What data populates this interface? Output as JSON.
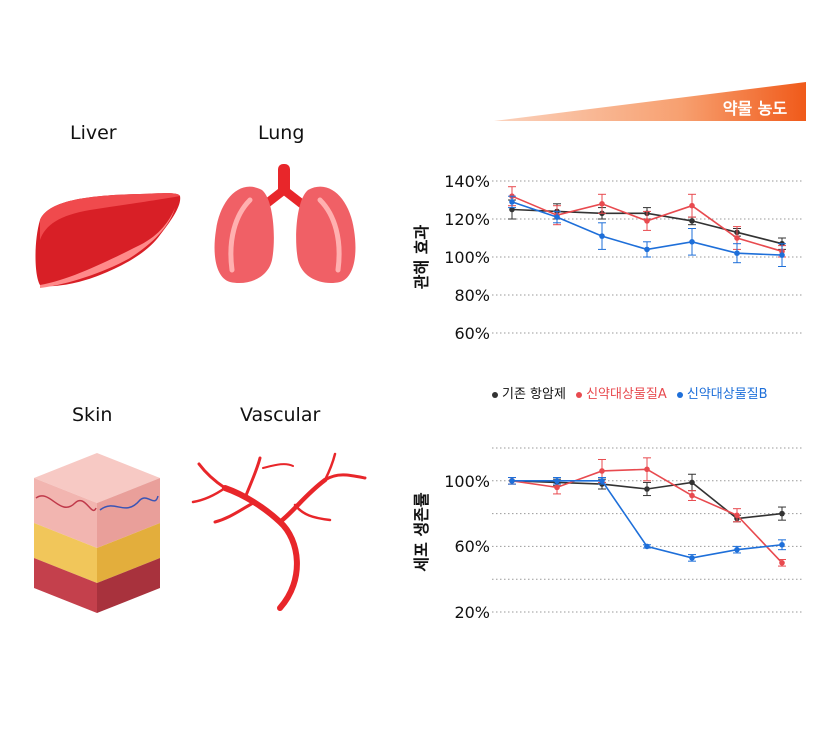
{
  "organs": {
    "liver": "Liver",
    "lung": "Lung",
    "skin": "Skin",
    "vascular": "Vascular"
  },
  "dose_label": "약물 농도",
  "colors": {
    "existing": "#333333",
    "candA": "#e84a4f",
    "candB": "#1e6fd9",
    "dose": "#f05a1a",
    "organ_red": "#e8262a"
  },
  "chart_data": [
    {
      "type": "line",
      "ylabel": "관해 효과",
      "ylim": [
        60,
        140
      ],
      "yticks": [
        "140%",
        "120%",
        "100%",
        "80%",
        "60%"
      ],
      "x": [
        1,
        2,
        3,
        4,
        5,
        6,
        7
      ],
      "grid": true,
      "series": [
        {
          "name": "기존 항암제",
          "color": "#333333",
          "values": [
            125,
            124,
            123,
            123,
            119,
            113,
            107
          ],
          "errors": [
            5,
            4,
            3,
            3,
            2,
            2,
            3
          ]
        },
        {
          "name": "신약대상물질A",
          "color": "#e84a4f",
          "values": [
            132,
            122,
            128,
            119,
            127,
            110,
            103
          ],
          "errors": [
            5,
            5,
            5,
            5,
            6,
            6,
            3
          ]
        },
        {
          "name": "신약대상물질B",
          "color": "#1e6fd9",
          "values": [
            129,
            121,
            111,
            104,
            108,
            102,
            101
          ],
          "errors": [
            3,
            3,
            7,
            4,
            7,
            5,
            6
          ]
        }
      ]
    },
    {
      "type": "line",
      "ylabel": "세포 생존률",
      "ylim": [
        20,
        100
      ],
      "yticks": [
        "100%",
        "60%",
        "20%"
      ],
      "x": [
        1,
        2,
        3,
        4,
        5,
        6,
        7
      ],
      "grid": true,
      "series": [
        {
          "name": "기존 항암제",
          "color": "#333333",
          "values": [
            100,
            99,
            98,
            95,
            99,
            77,
            80
          ],
          "errors": [
            2,
            2,
            3,
            4,
            5,
            2,
            4
          ]
        },
        {
          "name": "신약대상물질A",
          "color": "#e84a4f",
          "values": [
            100,
            96,
            106,
            107,
            91,
            79,
            50
          ],
          "errors": [
            2,
            4,
            7,
            7,
            3,
            4,
            2
          ]
        },
        {
          "name": "신약대상물질B",
          "color": "#1e6fd9",
          "values": [
            100,
            100,
            100,
            60,
            53,
            58,
            61
          ],
          "errors": [
            2,
            2,
            2,
            1,
            2,
            2,
            3
          ]
        }
      ]
    }
  ],
  "legend": [
    {
      "label": "기존 항암제",
      "color": "#333333"
    },
    {
      "label": "신약대상물질A",
      "color": "#e84a4f"
    },
    {
      "label": "신약대상물질B",
      "color": "#1e6fd9"
    }
  ]
}
